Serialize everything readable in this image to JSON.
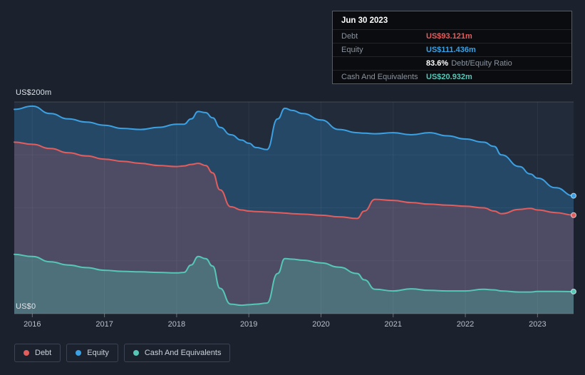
{
  "tooltip": {
    "date": "Jun 30 2023",
    "debt_label": "Debt",
    "debt_value": "US$93.121m",
    "equity_label": "Equity",
    "equity_value": "US$111.436m",
    "ratio_value": "83.6%",
    "ratio_label": "Debt/Equity Ratio",
    "cash_label": "Cash And Equivalents",
    "cash_value": "US$20.932m"
  },
  "axis": {
    "y_top_label": "US$200m",
    "y_bottom_label": "US$0",
    "x_tick_labels": [
      "2016",
      "2017",
      "2018",
      "2019",
      "2020",
      "2021",
      "2022",
      "2023"
    ]
  },
  "legend": {
    "items": [
      {
        "label": "Debt",
        "color": "#e35d5d"
      },
      {
        "label": "Equity",
        "color": "#3ba1e3"
      },
      {
        "label": "Cash And Equivalents",
        "color": "#55c7b7"
      }
    ]
  },
  "chart_data": {
    "type": "area",
    "title": "",
    "xlabel": "",
    "ylabel": "US$m",
    "xlim": [
      2015.75,
      2023.5
    ],
    "ylim": [
      0,
      200
    ],
    "x_ticks": [
      2016,
      2017,
      2018,
      2019,
      2020,
      2021,
      2022,
      2023
    ],
    "y_gridlines": [
      0,
      50,
      100,
      150,
      200
    ],
    "legend_position": "bottom-left",
    "x": [
      2015.75,
      2016,
      2016.25,
      2016.5,
      2016.75,
      2017,
      2017.25,
      2017.5,
      2017.75,
      2018,
      2018.1,
      2018.2,
      2018.3,
      2018.4,
      2018.5,
      2018.6,
      2018.75,
      2018.9,
      2019,
      2019.1,
      2019.25,
      2019.4,
      2019.5,
      2019.6,
      2019.75,
      2020,
      2020.25,
      2020.5,
      2020.6,
      2020.75,
      2021,
      2021.25,
      2021.5,
      2021.75,
      2022,
      2022.25,
      2022.4,
      2022.5,
      2022.75,
      2022.9,
      2023,
      2023.25,
      2023.5
    ],
    "series": [
      {
        "name": "Equity",
        "color": "#3ba1e3",
        "fill": "rgba(45,125,190,0.35)",
        "last_value_label": "US$111.436m",
        "values": [
          193,
          196,
          189,
          184,
          181,
          178,
          175,
          174,
          176,
          179,
          179,
          184,
          191,
          190,
          185,
          176,
          169,
          164,
          161,
          157,
          155,
          184,
          194,
          192,
          189,
          183,
          174,
          171,
          170.5,
          170,
          171,
          169,
          171,
          168,
          165,
          162,
          158,
          150,
          139,
          132,
          128,
          119,
          111.4
        ]
      },
      {
        "name": "Debt",
        "color": "#e35d5d",
        "fill": "rgba(225,90,95,0.22)",
        "last_value_label": "US$93.121m",
        "values": [
          162,
          160,
          156,
          152,
          149,
          146,
          144,
          142,
          140,
          139,
          139.5,
          141,
          142,
          140,
          133,
          117,
          101,
          98,
          97,
          96.5,
          96,
          95.5,
          95,
          94.5,
          94,
          93,
          91.5,
          90,
          97,
          108,
          107,
          105,
          103.5,
          102.5,
          101.5,
          100,
          97,
          94.5,
          98.5,
          99.5,
          98,
          95.5,
          93.1
        ]
      },
      {
        "name": "Cash And Equivalents",
        "color": "#55c7b7",
        "fill": "rgba(75,195,175,0.30)",
        "last_value_label": "US$20.932m",
        "values": [
          56,
          54,
          49,
          46,
          43.5,
          41,
          40,
          39.5,
          39,
          38.5,
          39,
          46,
          54,
          52,
          45,
          24,
          9,
          8,
          8.5,
          9,
          10,
          38,
          52,
          51.5,
          50.5,
          48,
          44,
          38,
          32,
          23,
          21.5,
          23.5,
          22,
          21.5,
          21.5,
          23,
          22.5,
          21.5,
          20.5,
          20.5,
          21,
          21,
          20.9
        ]
      }
    ]
  }
}
